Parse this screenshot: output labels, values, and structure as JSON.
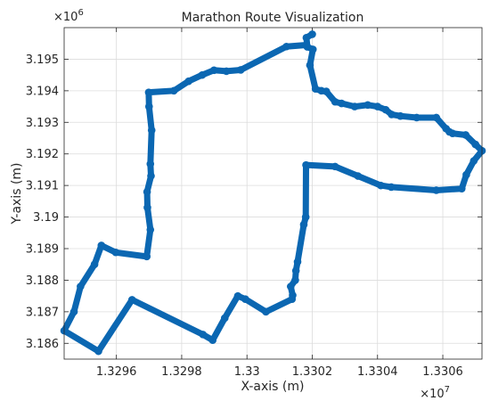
{
  "chart_data": {
    "type": "line",
    "title": "Marathon Route Visualization",
    "xlabel": "X-axis (m)",
    "ylabel": "Y-axis (m)",
    "x_multiplier": "×10",
    "x_exponent": "7",
    "y_multiplier": "×10",
    "y_exponent": "6",
    "xlim": [
      13294399,
      13307200
    ],
    "ylim": [
      3185500,
      3196000
    ],
    "grid": true,
    "x_ticks": [
      13296000,
      13298000,
      13300000,
      13302000,
      13304000,
      13306000
    ],
    "x_tick_labels": [
      "1.3296",
      "1.3298",
      "1.33",
      "1.3302",
      "1.3304",
      "1.3306"
    ],
    "y_ticks": [
      3186000,
      3187000,
      3188000,
      3189000,
      3190000,
      3191000,
      3192000,
      3193000,
      3194000,
      3195000
    ],
    "y_tick_labels": [
      "3.186",
      "3.187",
      "3.188",
      "3.189",
      "3.19",
      "3.191",
      "3.192",
      "3.193",
      "3.194",
      "3.195"
    ],
    "series": [
      {
        "color": "#0b67b2",
        "x": [
          13302000,
          13301820,
          13301850,
          13302020,
          13301930,
          13302100,
          13302280,
          13302430,
          13302700,
          13302900,
          13303300,
          13303700,
          13304000,
          13304250,
          13304430,
          13304700,
          13305200,
          13305800,
          13306100,
          13306200,
          13306300,
          13306700,
          13307000,
          13307200,
          13306950,
          13306720,
          13306580,
          13305800,
          13304420,
          13304100,
          13303400,
          13302700,
          13301810,
          13301800,
          13301740,
          13301550,
          13301500,
          13301480,
          13301340,
          13301400,
          13301380,
          13300580,
          13299950,
          13299720,
          13299320,
          13298950,
          13298650,
          13296480,
          13295450,
          13294400,
          13294700,
          13294900,
          13295330,
          13295540,
          13295980,
          13296930,
          13297040,
          13296950,
          13296940,
          13297060,
          13297040,
          13297080,
          13297000,
          13296990,
          13297760,
          13298210,
          13298630,
          13298990,
          13299370,
          13299810,
          13301210,
          13301820
        ],
        "y": [
          3195790,
          3195680,
          3195390,
          3195310,
          3194810,
          3194060,
          3194000,
          3193980,
          3193650,
          3193600,
          3193500,
          3193550,
          3193500,
          3193400,
          3193250,
          3193200,
          3193150,
          3193150,
          3192800,
          3192700,
          3192650,
          3192600,
          3192300,
          3192100,
          3191780,
          3191340,
          3190900,
          3190850,
          3190950,
          3191000,
          3191300,
          3191600,
          3191650,
          3190000,
          3189760,
          3188580,
          3188300,
          3188000,
          3187800,
          3187520,
          3187400,
          3187000,
          3187400,
          3187500,
          3186800,
          3186100,
          3186280,
          3187380,
          3185750,
          3186400,
          3187000,
          3187800,
          3188500,
          3189100,
          3188880,
          3188750,
          3189600,
          3190300,
          3190800,
          3191300,
          3191680,
          3192750,
          3193500,
          3193950,
          3194000,
          3194300,
          3194500,
          3194650,
          3194620,
          3194660,
          3195400,
          3195450
        ]
      }
    ]
  }
}
